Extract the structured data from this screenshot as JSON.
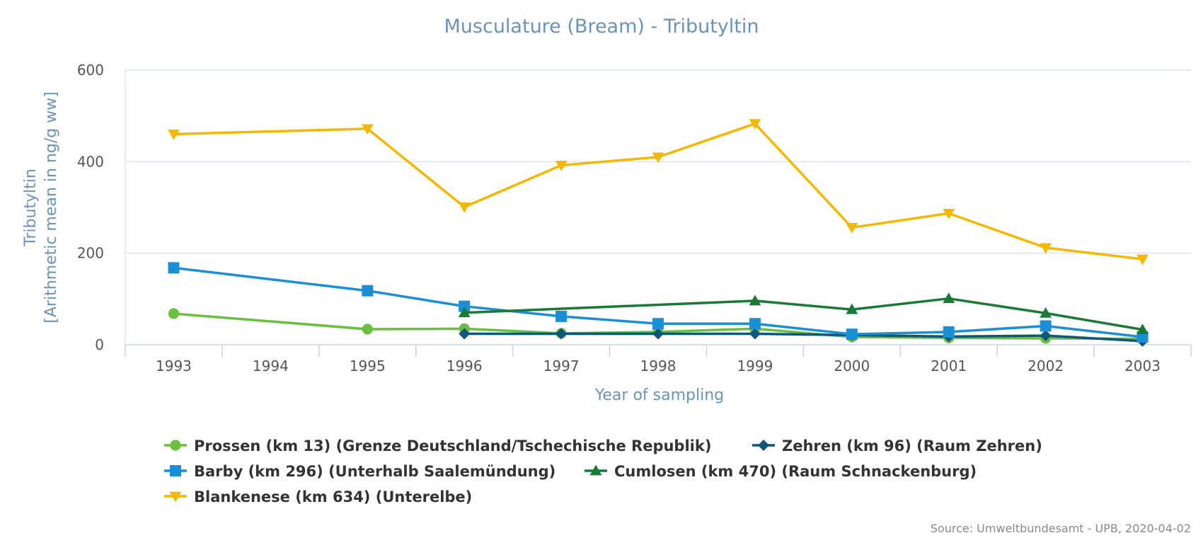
{
  "colors": {
    "title": "#6b93b8",
    "grid": "#dde5ef",
    "axis": "#c9d3df",
    "tick_text": "#555555",
    "legend_text": "#333333"
  },
  "chart_data": {
    "type": "line",
    "title": "Musculature (Bream) - Tributyltin",
    "xlabel": "Year of sampling",
    "ylabel": [
      "Tributyltin",
      "[Arithmetic mean in ng/g ww]"
    ],
    "categories": [
      "1993",
      "1994",
      "1995",
      "1996",
      "1997",
      "1998",
      "1999",
      "2000",
      "2001",
      "2002",
      "2003"
    ],
    "ylim": [
      0,
      600
    ],
    "yticks": [
      0,
      200,
      400,
      600
    ],
    "grid": true,
    "legend_position": "bottom",
    "series": [
      {
        "name": "Prossen (km 13) (Grenze Deutschland/Tschechische Republik)",
        "color": "#6abf3f",
        "marker": "circle",
        "values": [
          68,
          null,
          34,
          35,
          25,
          28,
          35,
          17,
          15,
          14,
          13
        ]
      },
      {
        "name": "Zehren (km 96) (Raum Zehren)",
        "color": "#0e5778",
        "marker": "diamond",
        "values": [
          null,
          null,
          null,
          24,
          24,
          24,
          24,
          21,
          18,
          20,
          8
        ]
      },
      {
        "name": "Barby (km 296) (Unterhalb Saalemündung)",
        "color": "#1b8fd6",
        "marker": "square",
        "values": [
          168,
          null,
          118,
          84,
          62,
          46,
          46,
          23,
          28,
          41,
          17
        ]
      },
      {
        "name": "Cumlosen (km 470) (Raum Schnackenburg)",
        "color": "#1a7a35",
        "marker": "triangle-up",
        "values": [
          null,
          null,
          null,
          70,
          null,
          null,
          96,
          77,
          101,
          69,
          33
        ]
      },
      {
        "name": "Blankenese (km 634) (Unterelbe)",
        "color": "#f5b800",
        "marker": "triangle-down",
        "values": [
          460,
          null,
          472,
          301,
          392,
          410,
          483,
          256,
          287,
          212,
          187
        ]
      }
    ],
    "credit": "Source: Umweltbundesamt - UPB, 2020-04-02"
  }
}
